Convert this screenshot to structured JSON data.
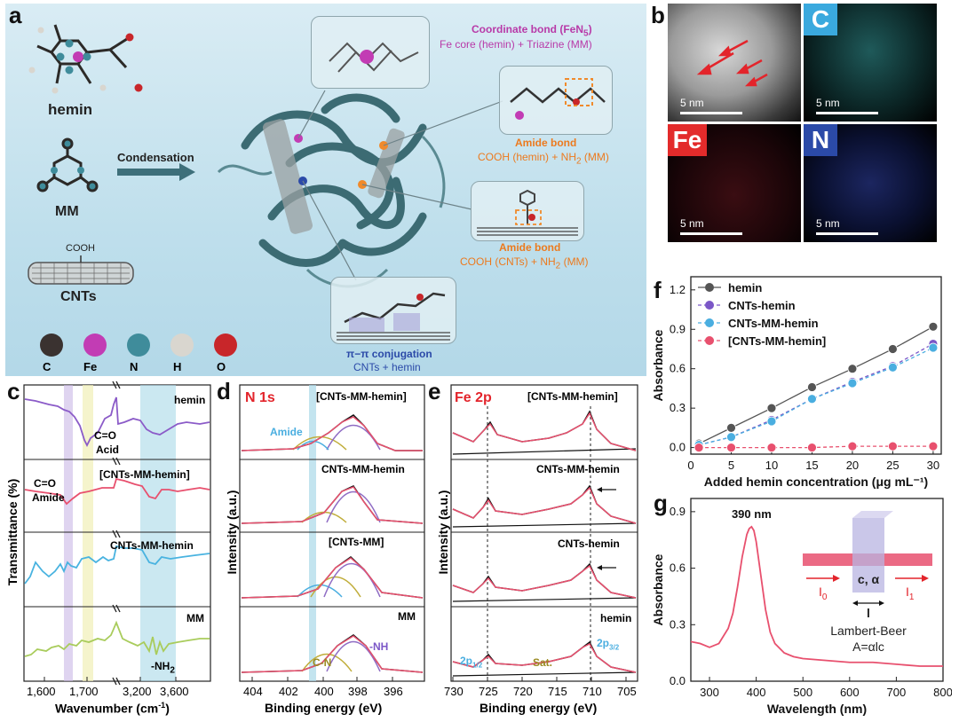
{
  "panels": {
    "a": "a",
    "b": "b",
    "c": "c",
    "d": "d",
    "e": "e",
    "f": "f",
    "g": "g"
  },
  "panel_a": {
    "hemin_label": "hemin",
    "mm_label": "MM",
    "cnts_label": "CNTs",
    "cooh_label": "COOH",
    "condensation_label": "Condensation",
    "coord_title": "Coordinate bond (FeN",
    "coord_sub": "5",
    "coord_close": ")",
    "coord_desc": "Fe core (hemin) + Triazine (MM)",
    "amide1_title": "Amide bond",
    "amide1_desc": "COOH (hemin) + NH",
    "amide1_sub": "2",
    "amide1_tail": " (MM)",
    "amide2_title": "Amide bond",
    "amide2_desc": "COOH (CNTs) + NH",
    "amide2_sub": "2",
    "amide2_tail": " (MM)",
    "pipi_title": "π−π conjugation",
    "pipi_desc": "CNTs + hemin",
    "atoms": [
      {
        "symbol": "C",
        "color": "#3a3230"
      },
      {
        "symbol": "Fe",
        "color": "#c23cb4"
      },
      {
        "symbol": "N",
        "color": "#3f8c9b"
      },
      {
        "symbol": "H",
        "color": "#d9d6cf"
      },
      {
        "symbol": "O",
        "color": "#c8262a"
      }
    ]
  },
  "panel_b": {
    "tiles": [
      {
        "element": "",
        "scale": "5 nm"
      },
      {
        "element": "C",
        "color": "#3aa9de",
        "scale": "5 nm"
      },
      {
        "element": "Fe",
        "color": "#e32b2b",
        "scale": "5 nm"
      },
      {
        "element": "N",
        "color": "#2b4aa8",
        "scale": "5 nm"
      }
    ]
  },
  "panel_c": {
    "ylabel": "Transmittance (%)",
    "xlabel": "Wavenumber (cm",
    "xlabel_sup": "-1",
    "xlabel_tail": ")",
    "ticks": [
      "1,600",
      "1,700",
      "3,200",
      "3,600"
    ],
    "traces": [
      {
        "name": "hemin",
        "color": "#8b5bc8"
      },
      {
        "name": "[CNTs-MM-hemin]",
        "color": "#e8506e"
      },
      {
        "name": "CNTs-MM-hemin",
        "color": "#49b3e0"
      },
      {
        "name": "MM",
        "color": "#a9cc5c"
      }
    ],
    "ann_co_acid": "C=O",
    "ann_acid": "Acid",
    "ann_co_amide": "C=O",
    "ann_amide": "Amide",
    "ann_nh2": "-NH",
    "ann_nh2_sub": "2"
  },
  "panel_d": {
    "title": "N 1s",
    "ylabel": "Intensity (a.u.)",
    "xlabel": "Binding energy (eV)",
    "ticks": [
      "404",
      "402",
      "400",
      "398",
      "396"
    ],
    "traces": [
      "[CNTs-MM-hemin]",
      "CNTs-MM-hemin",
      "[CNTs-MM]",
      "MM"
    ],
    "ann_amide": "Amide",
    "ann_cn": "C-N",
    "ann_nh": "-NH"
  },
  "panel_e": {
    "title": "Fe 2p",
    "ylabel": "Intensity (a.u.)",
    "xlabel": "Binding energy (eV)",
    "ticks": [
      "730",
      "725",
      "720",
      "715",
      "710",
      "705"
    ],
    "traces": [
      "[CNTs-MM-hemin]",
      "CNTs-MM-hemin",
      "CNTs-hemin",
      "hemin"
    ],
    "ann_2p12": "2p",
    "ann_2p12_sub": "1/2",
    "ann_sat": "Sat.",
    "ann_2p32": "2p",
    "ann_2p32_sub": "3/2"
  },
  "chart_data": [
    {
      "panel": "f",
      "type": "line",
      "xlabel": "Added hemin concentration (μg mL⁻¹)",
      "ylabel": "Absorbance",
      "x": [
        1,
        5,
        10,
        15,
        20,
        25,
        30
      ],
      "xticks": [
        "0",
        "5",
        "10",
        "15",
        "20",
        "25",
        "30"
      ],
      "yticks": [
        "0.0",
        "0.3",
        "0.6",
        "0.9",
        "1.2"
      ],
      "xlim": [
        0,
        31
      ],
      "ylim": [
        -0.05,
        1.3
      ],
      "legend_position": "top-left",
      "series": [
        {
          "name": "hemin",
          "color": "#555555",
          "line": "solid",
          "values": [
            0.03,
            0.15,
            0.3,
            0.46,
            0.6,
            0.75,
            0.92
          ]
        },
        {
          "name": "CNTs-hemin",
          "color": "#7b57c7",
          "line": "dashed",
          "values": [
            0.02,
            0.08,
            0.21,
            0.37,
            0.5,
            0.62,
            0.79
          ]
        },
        {
          "name": "CNTs-MM-hemin",
          "color": "#4aaee0",
          "line": "dashed",
          "values": [
            0.02,
            0.08,
            0.2,
            0.37,
            0.49,
            0.61,
            0.76
          ]
        },
        {
          "name": "[CNTs-MM-hemin]",
          "color": "#e8506e",
          "line": "dashed",
          "values": [
            0.0,
            0.0,
            0.0,
            0.0,
            0.01,
            0.01,
            0.01
          ]
        }
      ]
    },
    {
      "panel": "g",
      "type": "line",
      "xlabel": "Wavelength (nm)",
      "ylabel": "Absorbance",
      "xticks": [
        "300",
        "400",
        "500",
        "600",
        "700",
        "800"
      ],
      "yticks": [
        "0.0",
        "0.3",
        "0.6",
        "0.9"
      ],
      "xlim": [
        260,
        800
      ],
      "ylim": [
        0,
        0.97
      ],
      "peak_label": "390 nm",
      "series": [
        {
          "name": "",
          "color": "#e8506e",
          "x": [
            260,
            280,
            300,
            320,
            340,
            350,
            360,
            370,
            380,
            385,
            390,
            395,
            400,
            410,
            420,
            430,
            440,
            460,
            480,
            500,
            550,
            600,
            650,
            700,
            750,
            800
          ],
          "values": [
            0.21,
            0.2,
            0.18,
            0.2,
            0.28,
            0.36,
            0.5,
            0.66,
            0.78,
            0.81,
            0.82,
            0.8,
            0.74,
            0.56,
            0.38,
            0.26,
            0.2,
            0.15,
            0.13,
            0.12,
            0.11,
            0.1,
            0.1,
            0.09,
            0.08,
            0.08
          ]
        }
      ],
      "inset": {
        "i0": "I",
        "i0_sub": "0",
        "i1": "I",
        "i1_sub": "1",
        "c_alpha": "c, α",
        "l": "l",
        "law": "Lambert-Beer",
        "eq": "A=αlc"
      }
    }
  ]
}
